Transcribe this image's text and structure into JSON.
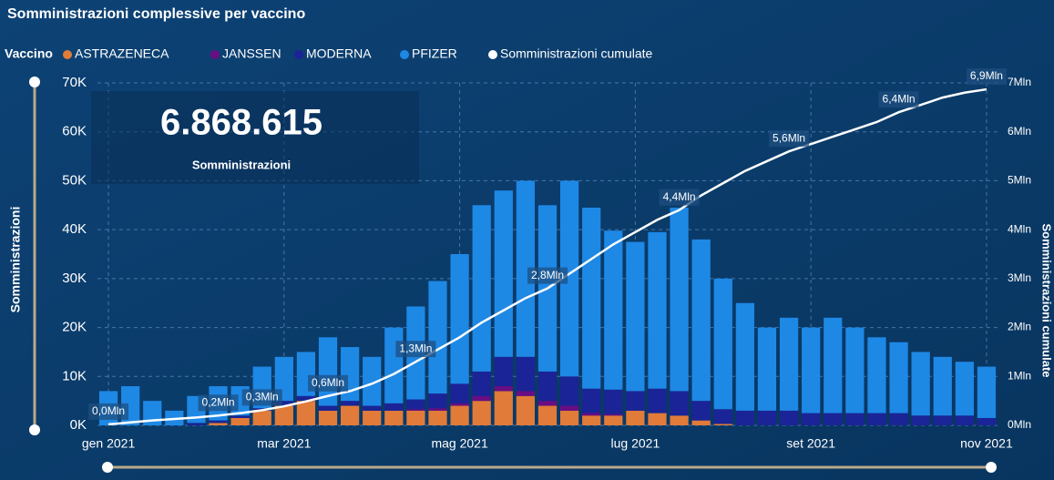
{
  "chart_data": {
    "type": "combo",
    "title": "Somministrazioni complessive per vaccino",
    "legend_title": "Vaccino",
    "kpi": {
      "value": "6.868.615",
      "label": "Somministrazioni"
    },
    "ylabel": "Somministrazioni",
    "y2label": "Somministrazioni cumulate",
    "categories": [
      "gen 2021",
      null,
      null,
      null,
      null,
      null,
      null,
      null,
      "mar 2021",
      null,
      null,
      null,
      null,
      null,
      null,
      null,
      "mag 2021",
      null,
      null,
      null,
      null,
      null,
      null,
      null,
      "lug 2021",
      null,
      null,
      null,
      null,
      null,
      null,
      null,
      "set 2021",
      null,
      null,
      null,
      null,
      null,
      null,
      null,
      "nov 2021"
    ],
    "ylim": [
      0,
      70000
    ],
    "yticks": [
      {
        "value": 0,
        "label": "0K"
      },
      {
        "value": 10000,
        "label": "10K"
      },
      {
        "value": 20000,
        "label": "20K"
      },
      {
        "value": 30000,
        "label": "30K"
      },
      {
        "value": 40000,
        "label": "40K"
      },
      {
        "value": 50000,
        "label": "50K"
      },
      {
        "value": 60000,
        "label": "60K"
      },
      {
        "value": 70000,
        "label": "70K"
      }
    ],
    "y2lim": [
      0,
      7000000
    ],
    "y2ticks": [
      {
        "value": 0,
        "label": "0Mln"
      },
      {
        "value": 1000000,
        "label": "1Mln"
      },
      {
        "value": 2000000,
        "label": "2Mln"
      },
      {
        "value": 3000000,
        "label": "3Mln"
      },
      {
        "value": 4000000,
        "label": "4Mln"
      },
      {
        "value": 5000000,
        "label": "5Mln"
      },
      {
        "value": 6000000,
        "label": "6Mln"
      },
      {
        "value": 7000000,
        "label": "7Mln"
      }
    ],
    "grid": true,
    "series": [
      {
        "name": "ASTRAZENECA",
        "type": "bar",
        "color": "#e07b39",
        "values": [
          0,
          0,
          0,
          0,
          0,
          500,
          1500,
          3000,
          4000,
          5000,
          3000,
          4000,
          3000,
          3000,
          3000,
          3000,
          4000,
          5000,
          7000,
          6000,
          4000,
          3000,
          2000,
          2000,
          3000,
          2500,
          2000,
          1000,
          300,
          0,
          0,
          0,
          0,
          0,
          0,
          0,
          0,
          0,
          0,
          0,
          0
        ]
      },
      {
        "name": "JANSSEN",
        "type": "bar",
        "color": "#6a0d83",
        "values": [
          0,
          0,
          0,
          0,
          0,
          0,
          0,
          0,
          0,
          0,
          0,
          0,
          0,
          0,
          300,
          500,
          500,
          1000,
          1000,
          1000,
          1000,
          1000,
          500,
          300,
          0,
          0,
          0,
          0,
          0,
          0,
          0,
          0,
          0,
          0,
          0,
          0,
          0,
          0,
          0,
          0,
          0
        ]
      },
      {
        "name": "MODERNA",
        "type": "bar",
        "color": "#1b2496",
        "values": [
          0,
          0,
          0,
          0,
          500,
          500,
          500,
          500,
          1000,
          1000,
          1000,
          1000,
          1000,
          1500,
          2000,
          3000,
          4000,
          5000,
          6000,
          7000,
          6000,
          6000,
          5000,
          5000,
          4000,
          5000,
          5000,
          4000,
          3000,
          3000,
          3000,
          3000,
          2500,
          2500,
          2500,
          2500,
          2500,
          2000,
          2000,
          2000,
          1500
        ]
      },
      {
        "name": "PFIZER",
        "type": "bar",
        "color": "#1e88e5",
        "values": [
          7000,
          8000,
          5000,
          3000,
          5500,
          7000,
          6000,
          8500,
          9000,
          9000,
          14000,
          11000,
          10000,
          15500,
          19000,
          23000,
          26500,
          34000,
          34000,
          36000,
          34000,
          40000,
          37000,
          32500,
          30500,
          32000,
          37500,
          33000,
          26700,
          22000,
          17000,
          19000,
          17500,
          19500,
          17500,
          15500,
          14500,
          13000,
          12000,
          11000,
          10500
        ]
      },
      {
        "name": "Somministrazioni cumulate",
        "type": "line",
        "axis": "y2",
        "color": "#ffffff",
        "values": [
          20000,
          60000,
          100000,
          130000,
          160000,
          200000,
          250000,
          310000,
          390000,
          490000,
          600000,
          700000,
          850000,
          1050000,
          1300000,
          1550000,
          1800000,
          2100000,
          2350000,
          2600000,
          2800000,
          3100000,
          3400000,
          3700000,
          3950000,
          4200000,
          4400000,
          4700000,
          4950000,
          5200000,
          5400000,
          5600000,
          5750000,
          5900000,
          6050000,
          6200000,
          6400000,
          6550000,
          6700000,
          6800000,
          6868615
        ],
        "value_labels": [
          "0,0Mln",
          null,
          null,
          null,
          null,
          "0,2Mln",
          null,
          "0,3Mln",
          null,
          null,
          "0,6Mln",
          null,
          null,
          null,
          "1,3Mln",
          null,
          null,
          null,
          null,
          null,
          "2,8Mln",
          null,
          null,
          null,
          null,
          null,
          "4,4Mln",
          null,
          null,
          null,
          null,
          "5,6Mln",
          null,
          null,
          null,
          null,
          "6,4Mln",
          null,
          null,
          null,
          "6,9Mln"
        ]
      }
    ]
  }
}
